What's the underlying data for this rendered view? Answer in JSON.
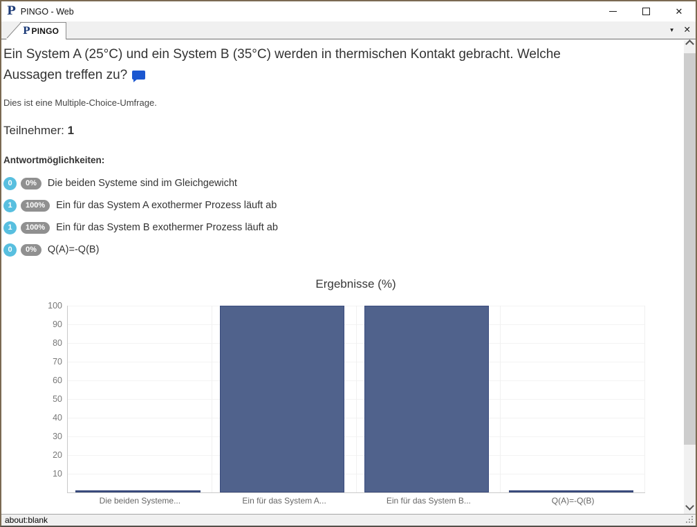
{
  "window": {
    "title": "PINGO - Web",
    "logo_glyph": "P"
  },
  "icons": {
    "window_close": "✕",
    "tab_close": "✕",
    "tab_dropdown": "▼"
  },
  "tab": {
    "label": "PINGO"
  },
  "question": {
    "text": "Ein System A (25°C) und ein System B (35°C) werden in thermischen Kontakt gebracht. Welche Aussagen treffen zu?"
  },
  "survey": {
    "type_note": "Dies ist eine Multiple-Choice-Umfrage.",
    "participants_label": "Teilnehmer:",
    "participants_count": "1",
    "answers_heading": "Antwortmöglichkeiten:"
  },
  "answers": [
    {
      "count": "0",
      "percent": "0%",
      "text": "Die beiden Systeme sind im Gleichgewicht"
    },
    {
      "count": "1",
      "percent": "100%",
      "text": "Ein für das System A exothermer Prozess läuft ab"
    },
    {
      "count": "1",
      "percent": "100%",
      "text": "Ein für das System B exothermer Prozess läuft ab"
    },
    {
      "count": "0",
      "percent": "0%",
      "text": "Q(A)=-Q(B)"
    }
  ],
  "chart_data": {
    "type": "bar",
    "title": "Ergebnisse (%)",
    "categories": [
      "Die beiden Systeme...",
      "Ein für das System A...",
      "Ein für das System B...",
      "Q(A)=-Q(B)"
    ],
    "values": [
      0,
      100,
      100,
      0
    ],
    "ylim": [
      0,
      100
    ],
    "yticks": [
      100,
      90,
      80,
      70,
      60,
      50,
      40,
      30,
      20,
      10
    ],
    "grid": true,
    "legend": "none",
    "bar_color": "#50628c",
    "bar_border_color": "#394a7c"
  },
  "statusbar": {
    "text": "about:blank"
  },
  "colors": {
    "count_badge": "#58bfdf",
    "percent_badge": "#909090",
    "comment_bubble": "#1b57d0",
    "logo_navy": "#1e3c78"
  }
}
